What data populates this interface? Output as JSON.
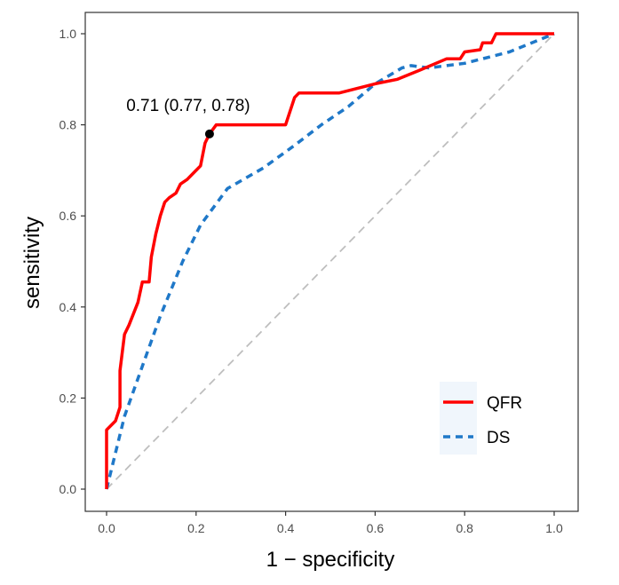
{
  "chart_data": {
    "type": "line",
    "title": "",
    "xlabel": "1 − specificity",
    "ylabel": "sensitivity",
    "xlim": [
      0,
      1
    ],
    "ylim": [
      0,
      1
    ],
    "x_ticks": [
      "0.0",
      "0.2",
      "0.4",
      "0.6",
      "0.8",
      "1.0"
    ],
    "y_ticks": [
      "0.0",
      "0.2",
      "0.4",
      "0.6",
      "0.8",
      "1.0"
    ],
    "grid": false,
    "legend_position": "bottom-right",
    "series": [
      {
        "name": "QFR",
        "color": "#ff0000",
        "style": "solid",
        "points": [
          [
            0.0,
            0.0
          ],
          [
            0.0,
            0.13
          ],
          [
            0.02,
            0.15
          ],
          [
            0.03,
            0.18
          ],
          [
            0.03,
            0.26
          ],
          [
            0.04,
            0.34
          ],
          [
            0.05,
            0.36
          ],
          [
            0.07,
            0.41
          ],
          [
            0.08,
            0.455
          ],
          [
            0.095,
            0.455
          ],
          [
            0.1,
            0.51
          ],
          [
            0.11,
            0.56
          ],
          [
            0.12,
            0.6
          ],
          [
            0.13,
            0.63
          ],
          [
            0.14,
            0.64
          ],
          [
            0.155,
            0.65
          ],
          [
            0.165,
            0.67
          ],
          [
            0.18,
            0.68
          ],
          [
            0.2,
            0.7
          ],
          [
            0.21,
            0.71
          ],
          [
            0.22,
            0.76
          ],
          [
            0.23,
            0.78
          ],
          [
            0.245,
            0.8
          ],
          [
            0.4,
            0.8
          ],
          [
            0.42,
            0.86
          ],
          [
            0.43,
            0.87
          ],
          [
            0.52,
            0.87
          ],
          [
            0.6,
            0.89
          ],
          [
            0.65,
            0.9
          ],
          [
            0.7,
            0.92
          ],
          [
            0.76,
            0.945
          ],
          [
            0.79,
            0.945
          ],
          [
            0.8,
            0.96
          ],
          [
            0.835,
            0.965
          ],
          [
            0.84,
            0.98
          ],
          [
            0.86,
            0.98
          ],
          [
            0.87,
            1.0
          ],
          [
            1.0,
            1.0
          ]
        ]
      },
      {
        "name": "DS",
        "color": "#1f78c8",
        "style": "dashed",
        "points": [
          [
            0.0,
            0.0
          ],
          [
            0.04,
            0.16
          ],
          [
            0.08,
            0.27
          ],
          [
            0.12,
            0.38
          ],
          [
            0.17,
            0.5
          ],
          [
            0.21,
            0.58
          ],
          [
            0.27,
            0.66
          ],
          [
            0.35,
            0.705
          ],
          [
            0.42,
            0.755
          ],
          [
            0.48,
            0.8
          ],
          [
            0.54,
            0.84
          ],
          [
            0.6,
            0.89
          ],
          [
            0.66,
            0.925
          ],
          [
            0.68,
            0.93
          ],
          [
            0.72,
            0.925
          ],
          [
            0.76,
            0.93
          ],
          [
            0.8,
            0.935
          ],
          [
            0.9,
            0.96
          ],
          [
            1.0,
            1.0
          ]
        ]
      },
      {
        "name": "reference",
        "color": "#bebebe",
        "style": "dashed",
        "points": [
          [
            0,
            0
          ],
          [
            1,
            1
          ]
        ]
      }
    ],
    "highlight_point": {
      "x": 0.23,
      "y": 0.78,
      "label": "0.71 (0.77, 0.78)"
    }
  }
}
